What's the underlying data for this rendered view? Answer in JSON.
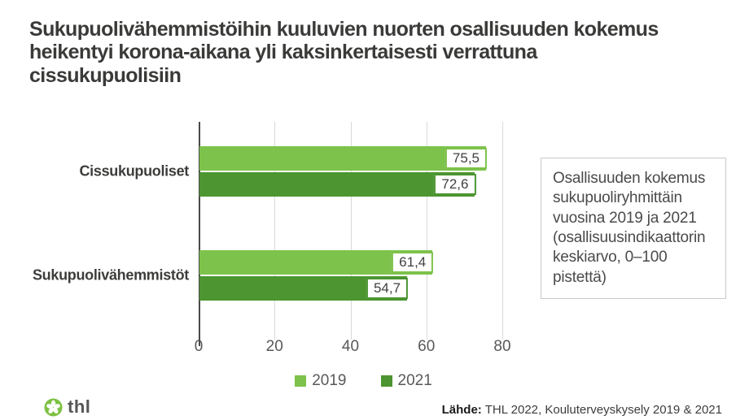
{
  "title": "Sukupuolivähemmistöihin kuuluvien nuorten osallisuuden kokemus heikentyi korona-aikana yli kaksinkertaisesti verrattuna cissukupuolisiin",
  "chart_data": {
    "type": "bar",
    "orientation": "horizontal",
    "categories": [
      "Cissukupuoliset",
      "Sukupuolivähemmistöt"
    ],
    "series": [
      {
        "name": "2019",
        "color": "#7dc24b",
        "values": [
          75.5,
          61.4
        ],
        "value_labels": [
          "75,5",
          "61,4"
        ]
      },
      {
        "name": "2021",
        "color": "#4c9530",
        "values": [
          72.6,
          54.7
        ],
        "value_labels": [
          "72,6",
          "54,7"
        ]
      }
    ],
    "xlim": [
      0,
      80
    ],
    "xticks": [
      0,
      20,
      40,
      60,
      80
    ],
    "grid": "vertical-light-gray",
    "legend_position": "bottom",
    "value_labels_style": "white box with series-colored border at bar end"
  },
  "annotation_box": {
    "text": "Osallisuuden kokemus sukupuoliryhmittäin vuosina 2019 ja 2021 (osallisuusindikaattorin keskiarvo, 0–100 pistettä)"
  },
  "footer": {
    "logo_text": "thl",
    "source_label": "Lähde:",
    "source_text": "THL 2022, Kouluterveyskysely 2019 & 2021"
  },
  "colors": {
    "series_2019": "#7dc24b",
    "series_2021": "#4c9530",
    "logo_green": "#7dc142",
    "title_text": "#3a3a39",
    "axis_text": "#595959",
    "gridline": "#d9d9d9",
    "background": "#ffffff"
  }
}
